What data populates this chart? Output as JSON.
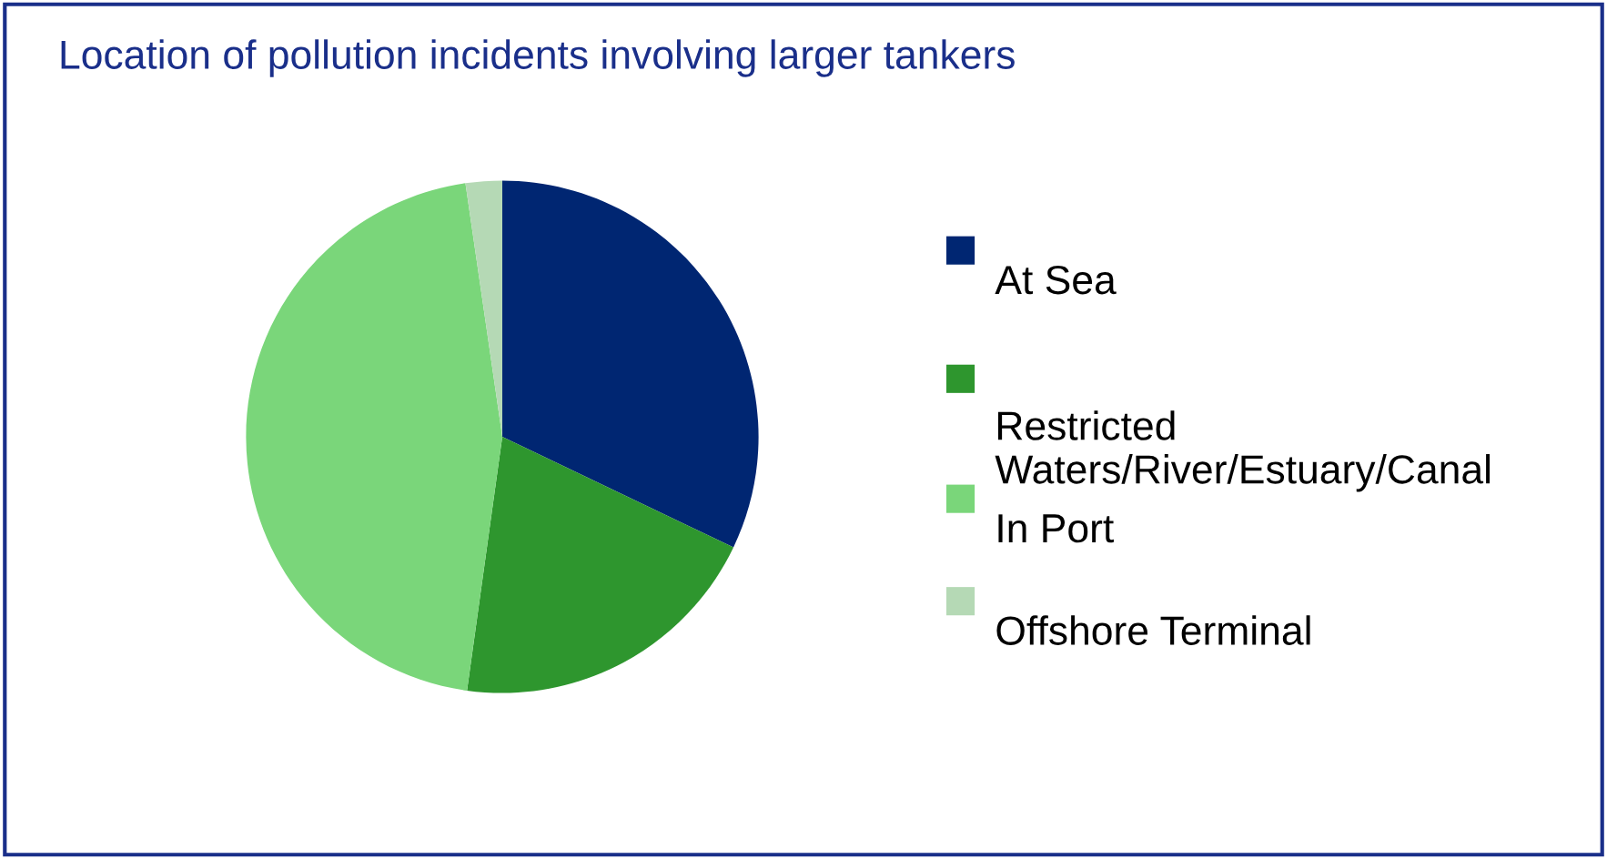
{
  "chart_data": {
    "type": "pie",
    "title": "Location of pollution incidents involving larger tankers",
    "categories": [
      "At Sea",
      "Restricted\nWaters/River/Estuary/Canal",
      "In Port",
      "Offshore Terminal"
    ],
    "values": [
      32.1,
      20.1,
      45.5,
      2.3
    ],
    "colors": [
      "#002672",
      "#2e962e",
      "#7ad67a",
      "#b5d9b5"
    ],
    "legend": "right"
  }
}
